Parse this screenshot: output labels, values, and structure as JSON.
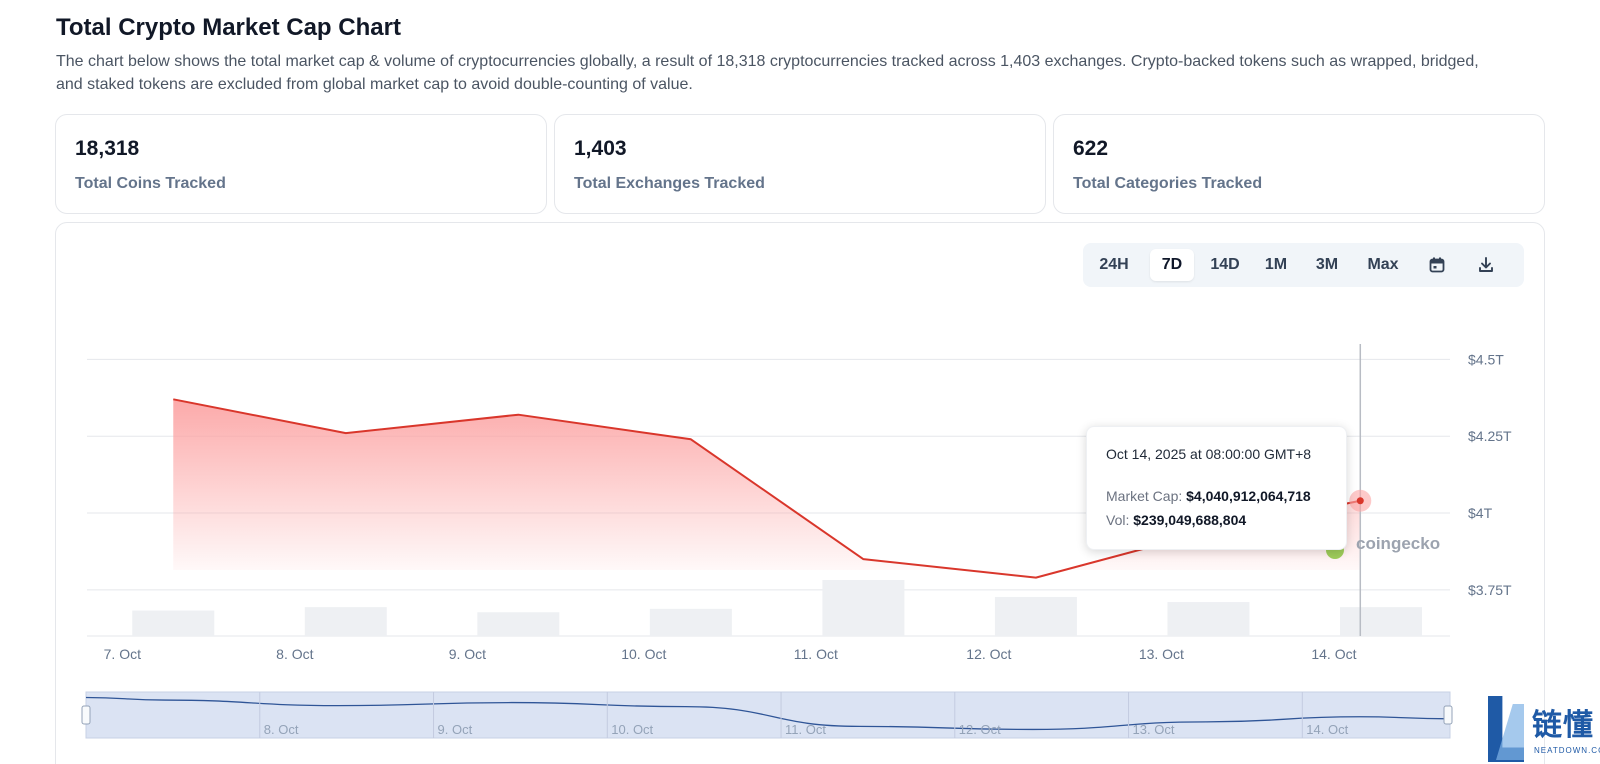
{
  "header": {
    "title": "Total Crypto Market Cap Chart",
    "description": "The chart below shows the total market cap & volume of cryptocurrencies globally, a result of 18,318 cryptocurrencies tracked across 1,403 exchanges. Crypto-backed tokens such as wrapped, bridged, and staked tokens are excluded from global market cap to avoid double-counting of value."
  },
  "stats": [
    {
      "value": "18,318",
      "label": "Total Coins Tracked"
    },
    {
      "value": "1,403",
      "label": "Total Exchanges Tracked"
    },
    {
      "value": "622",
      "label": "Total Categories Tracked"
    }
  ],
  "range_buttons": [
    {
      "label": "24H",
      "active": false
    },
    {
      "label": "7D",
      "active": true
    },
    {
      "label": "14D",
      "active": false
    },
    {
      "label": "1M",
      "active": false
    },
    {
      "label": "3M",
      "active": false
    },
    {
      "label": "Max",
      "active": false
    }
  ],
  "icons": {
    "calendar": "calendar-icon",
    "download": "download-icon"
  },
  "tooltip": {
    "date": "Oct 14, 2025 at 08:00:00 GMT+8",
    "market_cap_label": "Market Cap:",
    "market_cap_value": "$4,040,912,064,718",
    "vol_label": "Vol:",
    "vol_value": "$239,049,688,804"
  },
  "watermark": "coingecko",
  "corner_logo": {
    "cn": "链懂",
    "en": "NEATDOWN.COM"
  },
  "colors": {
    "line": "#d9362b",
    "area": "#fca5a5",
    "volume_bar": "#eef0f3",
    "navigator_fill": "#dbe3f3",
    "navigator_line": "#2f5597",
    "grid": "#e5e7eb"
  },
  "chart_data": {
    "type": "line",
    "title": "",
    "xlabel": "",
    "ylabel": "",
    "y_ticks": [
      "$4.5T",
      "$4.25T",
      "$4T",
      "$3.75T"
    ],
    "y_tick_values": [
      4.5,
      4.25,
      4.0,
      3.75
    ],
    "ylim": [
      3.6,
      4.55
    ],
    "x_ticks": [
      "7. Oct",
      "8. Oct",
      "9. Oct",
      "10. Oct",
      "11. Oct",
      "12. Oct",
      "13. Oct",
      "14. Oct"
    ],
    "x_tick_values": [
      7,
      8,
      9,
      10,
      11,
      12,
      13,
      14
    ],
    "xlim": [
      6.95,
      14.85
    ],
    "series": [
      {
        "x": [
          7.45,
          8.45,
          9.45,
          10.45,
          11.45,
          12.45,
          13.45,
          14.33
        ],
        "values": [
          4.37,
          4.26,
          4.32,
          4.24,
          3.85,
          3.79,
          3.94,
          4.04
        ]
      }
    ],
    "volume": {
      "x": [
        7.45,
        8.45,
        9.45,
        10.45,
        11.45,
        12.45,
        13.45,
        14.45
      ],
      "values": [
        0.15,
        0.17,
        0.14,
        0.16,
        0.33,
        0.23,
        0.2,
        0.17
      ]
    },
    "grid": true,
    "legend": "none",
    "navigator": {
      "x_ticks": [
        "8. Oct",
        "9. Oct",
        "10. Oct",
        "11. Oct",
        "12. Oct",
        "13. Oct",
        "14. Oct"
      ]
    }
  }
}
